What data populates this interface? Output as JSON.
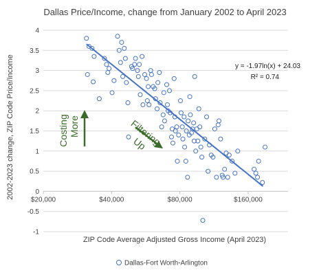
{
  "chart_data": {
    "type": "scatter",
    "title": "Dallas Price/Income, change from January 2002 to April 2023",
    "xlabel": "ZIP Code Average Adjusted Gross Income (April 2023)",
    "ylabel": "2002-2023 change, ZIP Code Price/Income",
    "x_scale": "log2",
    "xlim": [
      20000,
      240000
    ],
    "ylim": [
      -1,
      4
    ],
    "x_ticks": [
      {
        "value": 20000,
        "label": "$20,000"
      },
      {
        "value": 40000,
        "label": "$40,000"
      },
      {
        "value": 80000,
        "label": "$80,000"
      },
      {
        "value": 160000,
        "label": "$160,000"
      }
    ],
    "y_ticks": [
      {
        "value": -1,
        "label": "-1"
      },
      {
        "value": -0.5,
        "label": "-0.5"
      },
      {
        "value": 0,
        "label": "0"
      },
      {
        "value": 0.5,
        "label": "0.5"
      },
      {
        "value": 1,
        "label": "1"
      },
      {
        "value": 1.5,
        "label": "1.5"
      },
      {
        "value": 2,
        "label": "2"
      },
      {
        "value": 2.5,
        "label": "2.5"
      },
      {
        "value": 3,
        "label": "3"
      },
      {
        "value": 3.5,
        "label": "3.5"
      },
      {
        "value": 4,
        "label": "4"
      }
    ],
    "grid": "horizontal",
    "legend_position": "bottom",
    "colors": {
      "marker": "#4472c4",
      "trend": "#4472c4",
      "annotation": "#3a6b2a",
      "grid": "#d9d9d9"
    },
    "series": [
      {
        "name": "Dallas-Fort Worth-Arlington",
        "marker": "open-circle",
        "points": [
          [
            31000,
            3.8
          ],
          [
            31800,
            3.6
          ],
          [
            32800,
            3.55
          ],
          [
            33500,
            3.35
          ],
          [
            31300,
            2.9
          ],
          [
            33200,
            2.72
          ],
          [
            35300,
            2.3
          ],
          [
            37200,
            3.3
          ],
          [
            38000,
            3.15
          ],
          [
            38500,
            2.95
          ],
          [
            39000,
            3.05
          ],
          [
            40200,
            2.45
          ],
          [
            41000,
            2.75
          ],
          [
            42500,
            3.85
          ],
          [
            43200,
            3.5
          ],
          [
            43800,
            3.2
          ],
          [
            44300,
            3.7
          ],
          [
            45500,
            3.55
          ],
          [
            46000,
            3.3
          ],
          [
            44800,
            2.85
          ],
          [
            46500,
            2.7
          ],
          [
            47200,
            2.2
          ],
          [
            49000,
            3.1
          ],
          [
            49500,
            3.05
          ],
          [
            50500,
            3.15
          ],
          [
            51000,
            3.3
          ],
          [
            52000,
            3.0
          ],
          [
            52500,
            2.85
          ],
          [
            53000,
            3.15
          ],
          [
            53500,
            2.4
          ],
          [
            54500,
            3.35
          ],
          [
            55000,
            2.15
          ],
          [
            47500,
            1.35
          ],
          [
            56000,
            2.9
          ],
          [
            57000,
            2.8
          ],
          [
            57500,
            2.25
          ],
          [
            58000,
            2.6
          ],
          [
            58500,
            2.15
          ],
          [
            59500,
            3.0
          ],
          [
            60000,
            2.9
          ],
          [
            61000,
            2.6
          ],
          [
            62000,
            2.55
          ],
          [
            62500,
            2.3
          ],
          [
            63500,
            2.05
          ],
          [
            64000,
            2.7
          ],
          [
            65000,
            2.95
          ],
          [
            65500,
            2.2
          ],
          [
            66500,
            1.6
          ],
          [
            67500,
            1.9
          ],
          [
            68000,
            2.45
          ],
          [
            68500,
            1.75
          ],
          [
            70000,
            2.65
          ],
          [
            70500,
            2.15
          ],
          [
            71000,
            2.0
          ],
          [
            72000,
            2.5
          ],
          [
            72500,
            1.95
          ],
          [
            73500,
            1.35
          ],
          [
            74000,
            1.55
          ],
          [
            74500,
            1.2
          ],
          [
            75500,
            2.8
          ],
          [
            76000,
            1.85
          ],
          [
            76500,
            1.5
          ],
          [
            77500,
            1.6
          ],
          [
            78000,
            0.75
          ],
          [
            79000,
            1.4
          ],
          [
            80500,
            2.25
          ],
          [
            81000,
            1.95
          ],
          [
            82000,
            1.6
          ],
          [
            82500,
            1.3
          ],
          [
            83500,
            1.85
          ],
          [
            84000,
            1.1
          ],
          [
            85000,
            0.75
          ],
          [
            85500,
            1.5
          ],
          [
            86500,
            0.35
          ],
          [
            87000,
            1.75
          ],
          [
            88000,
            1.4
          ],
          [
            88500,
            2.35
          ],
          [
            89000,
            1.9
          ],
          [
            90000,
            1.45
          ],
          [
            91000,
            1.55
          ],
          [
            92000,
            1.7
          ],
          [
            92500,
            1.25
          ],
          [
            93000,
            2.85
          ],
          [
            94000,
            1.0
          ],
          [
            95000,
            1.55
          ],
          [
            96000,
            1.25
          ],
          [
            97000,
            2.05
          ],
          [
            98000,
            1.6
          ],
          [
            99000,
            1.1
          ],
          [
            100000,
            0.85
          ],
          [
            101000,
            -0.72
          ],
          [
            103000,
            1.3
          ],
          [
            105000,
            1.85
          ],
          [
            106500,
            0.5
          ],
          [
            108000,
            1.15
          ],
          [
            110000,
            0.9
          ],
          [
            112000,
            0.85
          ],
          [
            114000,
            1.55
          ],
          [
            116000,
            0.35
          ],
          [
            118000,
            1.65
          ],
          [
            119000,
            1.75
          ],
          [
            121000,
            1.3
          ],
          [
            123000,
            0.4
          ],
          [
            124000,
            0.35
          ],
          [
            126000,
            0.55
          ],
          [
            128000,
            0.95
          ],
          [
            130000,
            0.35
          ],
          [
            132000,
            0.9
          ],
          [
            136000,
            0.75
          ],
          [
            140000,
            0.45
          ],
          [
            144000,
            1.0
          ],
          [
            170000,
            0.55
          ],
          [
            173000,
            0.45
          ],
          [
            176000,
            0.35
          ],
          [
            178000,
            0.75
          ],
          [
            185000,
            0.22
          ],
          [
            190000,
            1.1
          ]
        ]
      }
    ],
    "trendline": {
      "type": "log",
      "a": -1.97,
      "b": 24.03,
      "x_range": [
        31000,
        186000
      ],
      "equation_label": "y = -1.97ln(x) + 24.03",
      "r2_label": "R² = 0.74"
    },
    "annotations": [
      {
        "text_lines": [
          "Costing",
          "More"
        ],
        "arrow": "up",
        "near": "left"
      },
      {
        "text_lines": [
          "Filtering",
          "Up"
        ],
        "arrow": "down-right",
        "near": "center"
      }
    ]
  }
}
